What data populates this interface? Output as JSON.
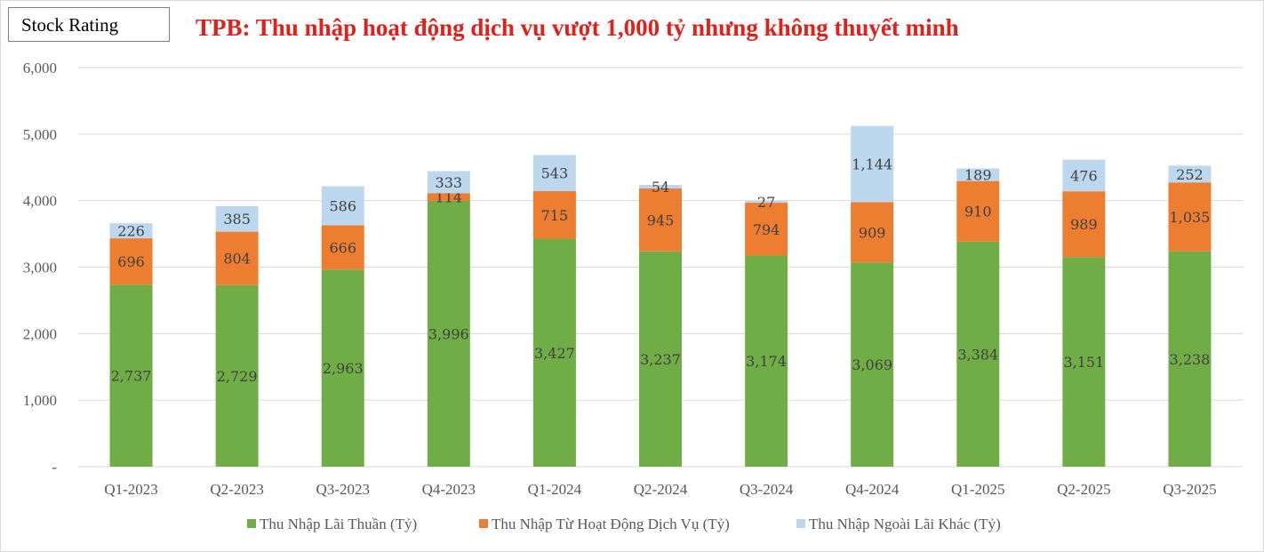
{
  "badge": "Stock Rating",
  "title": "TPB: Thu nhập hoạt động dịch vụ vượt 1,000 tỷ nhưng không thuyết minh",
  "chart_data": {
    "type": "bar",
    "stacked": true,
    "categories": [
      "Q1-2023",
      "Q2-2023",
      "Q3-2023",
      "Q4-2023",
      "Q1-2024",
      "Q2-2024",
      "Q3-2024",
      "Q4-2024",
      "Q1-2025",
      "Q2-2025",
      "Q3-2025"
    ],
    "series": [
      {
        "name": "Thu Nhập Lãi Thuần (Tỷ)",
        "color": "#70ad47",
        "values": [
          2737,
          2729,
          2963,
          3996,
          3427,
          3237,
          3174,
          3069,
          3384,
          3151,
          3238
        ]
      },
      {
        "name": "Thu Nhập Từ Hoạt Động Dịch Vụ (Tỷ)",
        "color": "#ed7d31",
        "values": [
          696,
          804,
          666,
          114,
          715,
          945,
          794,
          909,
          910,
          989,
          1035
        ]
      },
      {
        "name": "Thu Nhập Ngoài Lãi Khác (Tỷ)",
        "color": "#bdd7ee",
        "values": [
          226,
          385,
          586,
          333,
          543,
          54,
          27,
          1144,
          189,
          476,
          252
        ]
      }
    ],
    "ylim": [
      0,
      6000
    ],
    "yticks": [
      0,
      1000,
      2000,
      3000,
      4000,
      5000,
      6000
    ],
    "ytick_labels": [
      "-",
      "1,000",
      "2,000",
      "3,000",
      "4,000",
      "5,000",
      "6,000"
    ],
    "grid": true,
    "legend": "bottom"
  }
}
